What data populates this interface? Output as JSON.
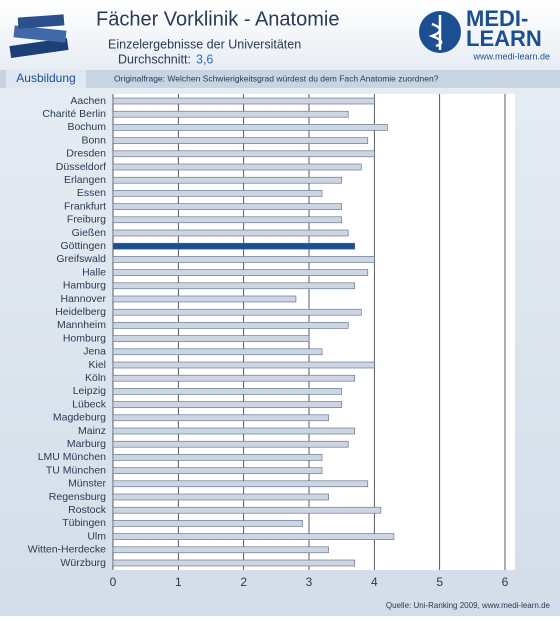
{
  "header": {
    "title": "Fächer Vorklinik - Anatomie",
    "subtitle": "Einzelergebnisse der Universitäten",
    "average_label": "Durchschnitt:",
    "average_value": "3,6",
    "logo_top": "MEDI-",
    "logo_bottom": "LEARN",
    "logo_url": "www.medi-learn.de",
    "section": "Ausbildung",
    "question": "Originalfrage: Welchen Schwierigkeitsgrad würdest du dem Fach Anatomie zuordnen?"
  },
  "chart_data": {
    "type": "hbar",
    "categories": [
      "Aachen",
      "Charité Berlin",
      "Bochum",
      "Bonn",
      "Dresden",
      "Düsseldorf",
      "Erlangen",
      "Essen",
      "Frankfurt",
      "Freiburg",
      "Gießen",
      "Göttingen",
      "Greifswald",
      "Halle",
      "Hamburg",
      "Hannover",
      "Heidelberg",
      "Mannheim",
      "Homburg",
      "Jena",
      "Kiel",
      "Köln",
      "Leipzig",
      "Lübeck",
      "Magdeburg",
      "Mainz",
      "Marburg",
      "LMU München",
      "TU München",
      "Münster",
      "Regensburg",
      "Rostock",
      "Tübingen",
      "Ulm",
      "Witten-Herdecke",
      "Würzburg"
    ],
    "values": [
      4.0,
      3.6,
      4.2,
      3.9,
      4.0,
      3.8,
      3.5,
      3.2,
      3.5,
      3.5,
      3.6,
      3.7,
      4.0,
      3.9,
      3.7,
      2.8,
      3.8,
      3.6,
      3.0,
      3.2,
      4.0,
      3.7,
      3.5,
      3.5,
      3.3,
      3.7,
      3.6,
      3.2,
      3.2,
      3.9,
      3.3,
      4.1,
      2.9,
      4.3,
      3.3,
      3.7
    ],
    "colors": [
      "#ccd5e1",
      "#ccd5e1",
      "#ccd5e1",
      "#ccd5e1",
      "#ccd5e1",
      "#ccd5e1",
      "#ccd5e1",
      "#ccd5e1",
      "#ccd5e1",
      "#ccd5e1",
      "#ccd5e1",
      "#1c4f91",
      "#ccd5e1",
      "#ccd5e1",
      "#ccd5e1",
      "#ccd5e1",
      "#ccd5e1",
      "#ccd5e1",
      "#ccd5e1",
      "#ccd5e1",
      "#ccd5e1",
      "#ccd5e1",
      "#ccd5e1",
      "#ccd5e1",
      "#ccd5e1",
      "#ccd5e1",
      "#ccd5e1",
      "#ccd5e1",
      "#ccd5e1",
      "#ccd5e1",
      "#ccd5e1",
      "#ccd5e1",
      "#ccd5e1",
      "#ccd5e1",
      "#ccd5e1",
      "#ccd5e1"
    ],
    "xlim": [
      0,
      6
    ],
    "xticks": [
      0,
      1,
      2,
      3,
      4,
      5,
      6
    ],
    "grid": true,
    "source": "Quelle: Uni-Ranking 2009, www.medi-learn.de"
  }
}
